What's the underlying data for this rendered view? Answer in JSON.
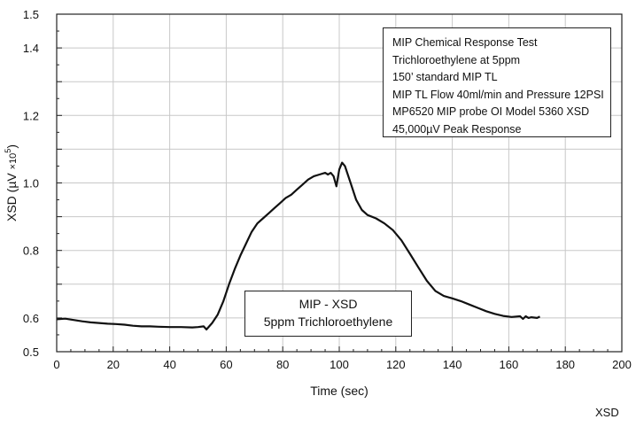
{
  "chart_data": {
    "type": "line",
    "title": "",
    "xlabel": "Time (sec)",
    "ylabel": "XSD (µV ×10⁵)",
    "ylabel_base": "XSD (µV ",
    "ylabel_mult": "×10",
    "ylabel_exp": "5",
    "ylabel_close": ")",
    "xlim": [
      0,
      200
    ],
    "ylim": [
      0.5,
      1.5
    ],
    "xticks": [
      0,
      20,
      40,
      60,
      80,
      100,
      120,
      140,
      160,
      180,
      200
    ],
    "xtick_labels": [
      "0",
      "20",
      "40",
      "60",
      "80",
      "100",
      "120",
      "140",
      "160",
      "180",
      "200"
    ],
    "yticks": [
      0.5,
      0.6,
      0.8,
      1.0,
      1.2,
      1.4,
      1.5
    ],
    "ytick_labels": [
      "0.5",
      "0.6",
      "0.8",
      "1.0",
      "1.2",
      "1.4",
      "1.5"
    ],
    "grid": true,
    "series": [
      {
        "name": "MIP - XSD 5ppm Trichloroethylene",
        "color": "#111111",
        "x": [
          0,
          3,
          6,
          9,
          12,
          15,
          18,
          21,
          24,
          27,
          30,
          33,
          36,
          40,
          44,
          48,
          50,
          52,
          53,
          55,
          57,
          59,
          61,
          63,
          65,
          67,
          69,
          71,
          73,
          75,
          77,
          79,
          81,
          83,
          85,
          87,
          89,
          91,
          93,
          95,
          96,
          97,
          98,
          99,
          100,
          101,
          102,
          104,
          106,
          108,
          110,
          113,
          116,
          119,
          122,
          125,
          128,
          131,
          134,
          137,
          140,
          143,
          146,
          149,
          152,
          155,
          158,
          161,
          164,
          165,
          166,
          167,
          168,
          170,
          171
        ],
        "y": [
          0.596,
          0.598,
          0.594,
          0.59,
          0.587,
          0.585,
          0.583,
          0.582,
          0.58,
          0.577,
          0.575,
          0.575,
          0.574,
          0.573,
          0.573,
          0.572,
          0.573,
          0.575,
          0.566,
          0.585,
          0.61,
          0.65,
          0.7,
          0.745,
          0.785,
          0.82,
          0.855,
          0.88,
          0.895,
          0.91,
          0.925,
          0.94,
          0.955,
          0.965,
          0.98,
          0.995,
          1.01,
          1.02,
          1.025,
          1.03,
          1.025,
          1.03,
          1.02,
          0.99,
          1.04,
          1.06,
          1.05,
          1.0,
          0.95,
          0.92,
          0.905,
          0.895,
          0.88,
          0.86,
          0.83,
          0.79,
          0.75,
          0.71,
          0.68,
          0.665,
          0.658,
          0.65,
          0.64,
          0.63,
          0.62,
          0.612,
          0.606,
          0.603,
          0.605,
          0.597,
          0.605,
          0.6,
          0.602,
          0.6,
          0.604
        ]
      }
    ]
  },
  "info_box": {
    "lines": [
      "MIP Chemical Response Test",
      "Trichloroethylene at 5ppm",
      "150’ standard MIP TL",
      "MIP TL Flow 40ml/min and Pressure 12PSI",
      "MP6520 MIP probe     OI Model 5360 XSD",
      "45,000µV Peak Response"
    ]
  },
  "legend": {
    "line1": "MIP - XSD",
    "line2": "5ppm Trichloroethylene"
  },
  "corner_label": "XSD"
}
